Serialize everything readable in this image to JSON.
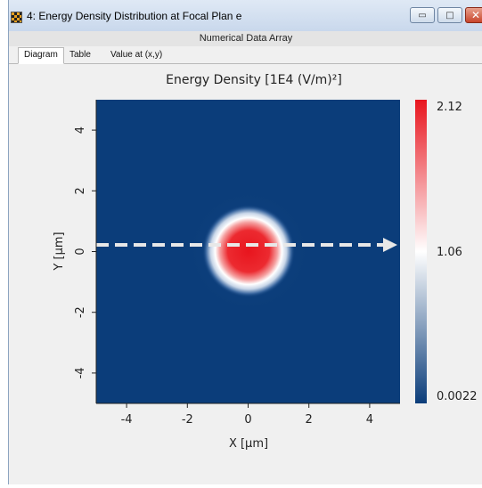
{
  "window": {
    "title": "4: Energy Density Distribution at Focal Plan e",
    "minimize_glyph": "▭",
    "maximize_glyph": "□",
    "close_glyph": "✕"
  },
  "subheader": {
    "label": "Numerical Data Array"
  },
  "tabs": [
    {
      "label": "Diagram",
      "active": true
    },
    {
      "label": "Table",
      "active": false
    },
    {
      "label": "Value at (x,y)",
      "active": false
    }
  ],
  "colors": {
    "low": "#0b3d7a",
    "mid": "#ffffff",
    "high": "#e8151e",
    "arrow": "#e8e8e8"
  },
  "chart_data": {
    "type": "heatmap",
    "title": "Energy Density  [1E4 (V/m)²]",
    "xlabel": "X [µm]",
    "ylabel": "Y [µm]",
    "xlim": [
      -5,
      5
    ],
    "ylim": [
      -5,
      5
    ],
    "xticks": [
      "-4",
      "-2",
      "0",
      "2",
      "4"
    ],
    "yticks": [
      "4",
      "2",
      "0",
      "-2",
      "-4"
    ],
    "colorbar": {
      "min": 0.0022,
      "mid": 1.06,
      "max": 2.12,
      "labels": [
        "2.12",
        "1.06",
        "0.0022"
      ]
    },
    "spot": {
      "center_x_um": 0,
      "center_y_um": 0,
      "radius_um": 1.2
    },
    "arrow": {
      "from_x_um": -5,
      "to_x_um": 4.9,
      "y_um": 0.2
    }
  }
}
